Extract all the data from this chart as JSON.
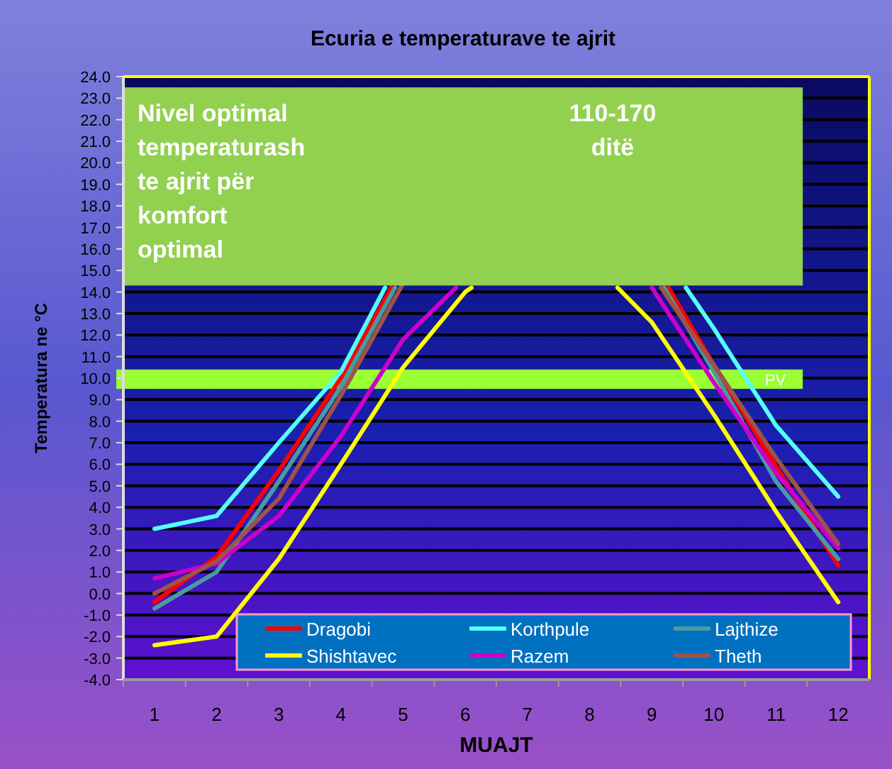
{
  "chart_data": {
    "type": "line",
    "title": "Ecuria e temperaturave te ajrit",
    "xlabel": "MUAJT",
    "ylabel": "Temperatura ne °C",
    "xlim": [
      0.5,
      12.5
    ],
    "xticks": [
      1,
      2,
      3,
      4,
      5,
      6,
      7,
      8,
      9,
      10,
      11,
      12
    ],
    "ylim": [
      -4,
      24
    ],
    "yticks": [
      {
        "value": -4,
        "label": "-4.0"
      },
      {
        "value": -3,
        "label": "-3.0"
      },
      {
        "value": -2,
        "label": "-2.0"
      },
      {
        "value": -1,
        "label": "-1.0"
      },
      {
        "value": 0,
        "label": "0.0"
      },
      {
        "value": 1,
        "label": "1.0"
      },
      {
        "value": 2,
        "label": "2.0"
      },
      {
        "value": 3,
        "label": "3.0"
      },
      {
        "value": 4,
        "label": "4.0"
      },
      {
        "value": 5,
        "label": "5.0"
      },
      {
        "value": 6,
        "label": "6.0"
      },
      {
        "value": 7,
        "label": "7.0"
      },
      {
        "value": 8,
        "label": "8.0"
      },
      {
        "value": 9,
        "label": "9.0"
      },
      {
        "value": 10,
        "label": "10.0"
      },
      {
        "value": 11,
        "label": "11.0"
      },
      {
        "value": 12,
        "label": "12.0"
      },
      {
        "value": 13,
        "label": "13.0"
      },
      {
        "value": 14,
        "label": "14.0"
      },
      {
        "value": 15,
        "label": "15.0"
      },
      {
        "value": 16,
        "label": "16.0"
      },
      {
        "value": 17,
        "label": "17.0"
      },
      {
        "value": 18,
        "label": "18.0"
      },
      {
        "value": 19,
        "label": "19.0"
      },
      {
        "value": 20,
        "label": "20.0"
      },
      {
        "value": 21,
        "label": "21.0"
      },
      {
        "value": 22,
        "label": "22.0"
      },
      {
        "value": 23,
        "label": "23.0"
      },
      {
        "value": 24,
        "label": "24.0"
      }
    ],
    "grid": "y",
    "legend": "bottom",
    "marker": "none",
    "line_style": "solid",
    "series": [
      {
        "name": "Dragobi",
        "color": "#ff0000",
        "x": [
          1,
          2,
          3,
          4,
          4.81,
          null,
          9.27,
          10,
          11,
          12
        ],
        "values": [
          -0.4,
          1.7,
          5.7,
          10.0,
          14.2,
          null,
          14.2,
          10.6,
          5.9,
          1.3
        ]
      },
      {
        "name": "Korthpule",
        "color": "#55ffff",
        "x": [
          1,
          2,
          3,
          4,
          4.71,
          null,
          9.55,
          10,
          11,
          12
        ],
        "values": [
          3.0,
          3.6,
          7.0,
          10.3,
          14.2,
          null,
          14.2,
          12.3,
          7.8,
          4.5
        ]
      },
      {
        "name": "Lajthize",
        "color": "#4a9aa0",
        "x": [
          1,
          2,
          3,
          4,
          4.87,
          null,
          9.2,
          10,
          11,
          12
        ],
        "values": [
          -0.7,
          1.0,
          5.2,
          9.6,
          14.2,
          null,
          14.2,
          10.3,
          5.2,
          1.6
        ]
      },
      {
        "name": "Shishtavec",
        "color": "#ffff00",
        "x": [
          1,
          2,
          3,
          4,
          5,
          6,
          6.1,
          null,
          8.45,
          9,
          10,
          11,
          12
        ],
        "values": [
          -2.4,
          -2.0,
          1.6,
          6.0,
          10.5,
          14.0,
          14.2,
          null,
          14.2,
          12.6,
          8.3,
          3.8,
          -0.4
        ]
      },
      {
        "name": "Razem",
        "color": "#cc00cc",
        "x": [
          1,
          2,
          3,
          4,
          5,
          5.85,
          null,
          9,
          10,
          11,
          12
        ],
        "values": [
          0.7,
          1.4,
          3.6,
          7.3,
          11.8,
          14.2,
          null,
          14.2,
          9.8,
          5.6,
          2.1
        ]
      },
      {
        "name": "Theth",
        "color": "#a0524a",
        "x": [
          1,
          2,
          3,
          4,
          5,
          null,
          9.15,
          10,
          11,
          12
        ],
        "values": [
          0.0,
          1.5,
          4.4,
          9.2,
          14.4,
          null,
          14.2,
          10.6,
          6.3,
          2.3
        ]
      }
    ],
    "bands": [
      {
        "axis": "y",
        "from": 14.3,
        "to": 23.5,
        "label": "Nivel optimal temperaturash te ajrit për komfort optimal",
        "color": "#92d050"
      },
      {
        "axis": "y",
        "from": 9.5,
        "to": 10.4,
        "label": "PV",
        "color": "#99ff33"
      }
    ],
    "annotations": [
      "110-170 ditë"
    ]
  }
}
